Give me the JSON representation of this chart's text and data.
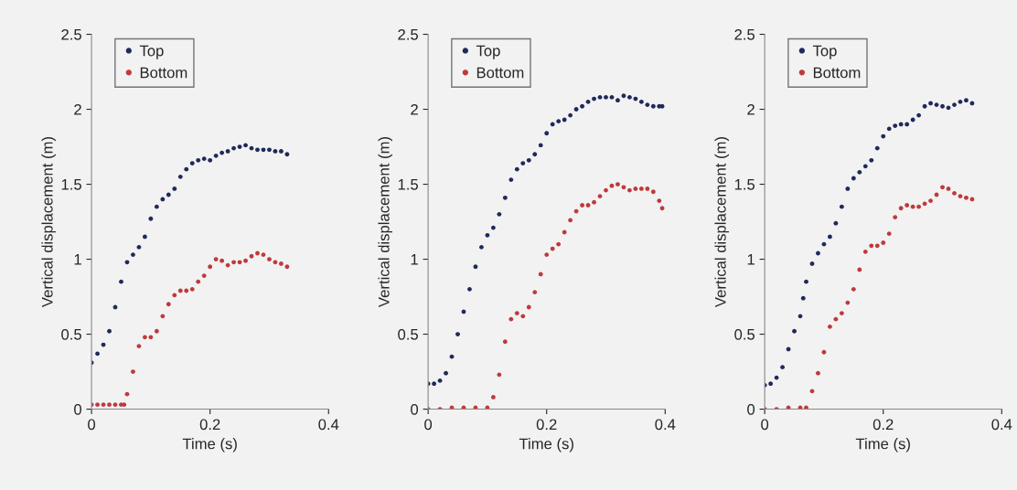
{
  "chart_data": [
    {
      "type": "scatter",
      "xlabel": "Time (s)",
      "ylabel": "Vertical displacement (m)",
      "xlim": [
        0,
        0.4
      ],
      "ylim": [
        0,
        2.5
      ],
      "xticks": [
        0,
        0.2,
        0.4
      ],
      "yticks": [
        0,
        0.5,
        1,
        1.5,
        2,
        2.5
      ],
      "grid": false,
      "legend": "top left",
      "marker": "circle",
      "series": [
        {
          "name": "Top",
          "color": "#1f2a5a",
          "x": [
            0,
            0.01,
            0.02,
            0.03,
            0.04,
            0.05,
            0.06,
            0.07,
            0.08,
            0.09,
            0.1,
            0.11,
            0.12,
            0.13,
            0.14,
            0.15,
            0.16,
            0.17,
            0.18,
            0.19,
            0.2,
            0.21,
            0.22,
            0.23,
            0.24,
            0.25,
            0.26,
            0.27,
            0.28,
            0.29,
            0.3,
            0.31,
            0.32,
            0.33
          ],
          "values": [
            0.31,
            0.37,
            0.43,
            0.52,
            0.68,
            0.85,
            0.98,
            1.03,
            1.08,
            1.15,
            1.27,
            1.35,
            1.4,
            1.43,
            1.47,
            1.55,
            1.6,
            1.64,
            1.66,
            1.67,
            1.66,
            1.69,
            1.71,
            1.72,
            1.74,
            1.75,
            1.76,
            1.74,
            1.73,
            1.73,
            1.73,
            1.72,
            1.72,
            1.7
          ]
        },
        {
          "name": "Bottom",
          "color": "#c0393b",
          "x": [
            0,
            0.01,
            0.02,
            0.03,
            0.04,
            0.05,
            0.055,
            0.06,
            0.07,
            0.08,
            0.09,
            0.1,
            0.11,
            0.12,
            0.13,
            0.14,
            0.15,
            0.16,
            0.17,
            0.18,
            0.19,
            0.2,
            0.21,
            0.22,
            0.23,
            0.24,
            0.25,
            0.26,
            0.27,
            0.28,
            0.29,
            0.3,
            0.31,
            0.32,
            0.33
          ],
          "values": [
            0.03,
            0.03,
            0.03,
            0.03,
            0.03,
            0.03,
            0.03,
            0.1,
            0.25,
            0.42,
            0.48,
            0.48,
            0.52,
            0.62,
            0.7,
            0.76,
            0.79,
            0.79,
            0.8,
            0.85,
            0.89,
            0.95,
            1.0,
            0.99,
            0.96,
            0.98,
            0.98,
            0.99,
            1.02,
            1.04,
            1.03,
            1.0,
            0.98,
            0.97,
            0.95
          ]
        }
      ]
    },
    {
      "type": "scatter",
      "xlabel": "Time (s)",
      "ylabel": "Vertical displacement (m)",
      "xlim": [
        0,
        0.4
      ],
      "ylim": [
        0,
        2.5
      ],
      "xticks": [
        0,
        0.2,
        0.4
      ],
      "yticks": [
        0,
        0.5,
        1,
        1.5,
        2,
        2.5
      ],
      "grid": false,
      "legend": "top left",
      "marker": "circle",
      "series": [
        {
          "name": "Top",
          "color": "#1f2a5a",
          "x": [
            0,
            0.01,
            0.02,
            0.03,
            0.04,
            0.05,
            0.06,
            0.07,
            0.08,
            0.09,
            0.1,
            0.11,
            0.12,
            0.13,
            0.14,
            0.15,
            0.16,
            0.17,
            0.18,
            0.19,
            0.2,
            0.21,
            0.22,
            0.23,
            0.24,
            0.25,
            0.26,
            0.27,
            0.28,
            0.29,
            0.3,
            0.31,
            0.32,
            0.33,
            0.34,
            0.35,
            0.36,
            0.37,
            0.38,
            0.39,
            0.395
          ],
          "values": [
            0.17,
            0.17,
            0.19,
            0.24,
            0.35,
            0.5,
            0.65,
            0.8,
            0.95,
            1.08,
            1.16,
            1.21,
            1.3,
            1.41,
            1.53,
            1.6,
            1.64,
            1.66,
            1.7,
            1.76,
            1.84,
            1.9,
            1.92,
            1.93,
            1.96,
            2.0,
            2.02,
            2.05,
            2.07,
            2.08,
            2.08,
            2.08,
            2.06,
            2.09,
            2.08,
            2.07,
            2.05,
            2.03,
            2.02,
            2.02,
            2.02
          ]
        },
        {
          "name": "Bottom",
          "color": "#c0393b",
          "x": [
            0,
            0.02,
            0.04,
            0.06,
            0.08,
            0.1,
            0.11,
            0.12,
            0.13,
            0.14,
            0.15,
            0.16,
            0.17,
            0.18,
            0.19,
            0.2,
            0.21,
            0.22,
            0.23,
            0.24,
            0.25,
            0.26,
            0.27,
            0.28,
            0.29,
            0.3,
            0.31,
            0.32,
            0.33,
            0.34,
            0.35,
            0.36,
            0.37,
            0.38,
            0.39,
            0.395
          ],
          "values": [
            0.0,
            0.0,
            0.01,
            0.01,
            0.01,
            0.01,
            0.08,
            0.23,
            0.45,
            0.6,
            0.64,
            0.62,
            0.68,
            0.78,
            0.9,
            1.03,
            1.07,
            1.1,
            1.18,
            1.26,
            1.32,
            1.36,
            1.36,
            1.38,
            1.42,
            1.46,
            1.49,
            1.5,
            1.48,
            1.46,
            1.47,
            1.47,
            1.47,
            1.45,
            1.39,
            1.34
          ]
        }
      ]
    },
    {
      "type": "scatter",
      "xlabel": "Time (s)",
      "ylabel": "Vertical displacement (m)",
      "xlim": [
        0,
        0.4
      ],
      "ylim": [
        0,
        2.5
      ],
      "xticks": [
        0,
        0.2,
        0.4
      ],
      "yticks": [
        0,
        0.5,
        1,
        1.5,
        2,
        2.5
      ],
      "grid": false,
      "legend": "top left",
      "marker": "circle",
      "series": [
        {
          "name": "Top",
          "color": "#1f2a5a",
          "x": [
            0,
            0.01,
            0.02,
            0.03,
            0.04,
            0.05,
            0.06,
            0.065,
            0.07,
            0.08,
            0.09,
            0.1,
            0.11,
            0.12,
            0.13,
            0.14,
            0.15,
            0.16,
            0.17,
            0.18,
            0.19,
            0.2,
            0.21,
            0.22,
            0.23,
            0.24,
            0.25,
            0.26,
            0.27,
            0.28,
            0.29,
            0.3,
            0.31,
            0.32,
            0.33,
            0.34,
            0.35
          ],
          "values": [
            0.16,
            0.17,
            0.21,
            0.28,
            0.4,
            0.52,
            0.62,
            0.74,
            0.85,
            0.97,
            1.04,
            1.1,
            1.15,
            1.24,
            1.35,
            1.47,
            1.54,
            1.58,
            1.62,
            1.66,
            1.74,
            1.82,
            1.87,
            1.89,
            1.9,
            1.9,
            1.93,
            1.96,
            2.02,
            2.04,
            2.03,
            2.02,
            2.01,
            2.03,
            2.05,
            2.06,
            2.04
          ]
        },
        {
          "name": "Bottom",
          "color": "#c0393b",
          "x": [
            0,
            0.02,
            0.04,
            0.06,
            0.07,
            0.08,
            0.09,
            0.1,
            0.11,
            0.12,
            0.13,
            0.14,
            0.15,
            0.16,
            0.17,
            0.18,
            0.19,
            0.2,
            0.21,
            0.22,
            0.23,
            0.24,
            0.25,
            0.26,
            0.27,
            0.28,
            0.29,
            0.3,
            0.31,
            0.32,
            0.33,
            0.34,
            0.35
          ],
          "values": [
            0.0,
            0.0,
            0.01,
            0.01,
            0.01,
            0.12,
            0.24,
            0.38,
            0.55,
            0.6,
            0.64,
            0.71,
            0.8,
            0.93,
            1.05,
            1.09,
            1.09,
            1.11,
            1.17,
            1.28,
            1.34,
            1.36,
            1.35,
            1.35,
            1.37,
            1.39,
            1.43,
            1.48,
            1.47,
            1.44,
            1.42,
            1.41,
            1.4
          ]
        }
      ]
    }
  ]
}
